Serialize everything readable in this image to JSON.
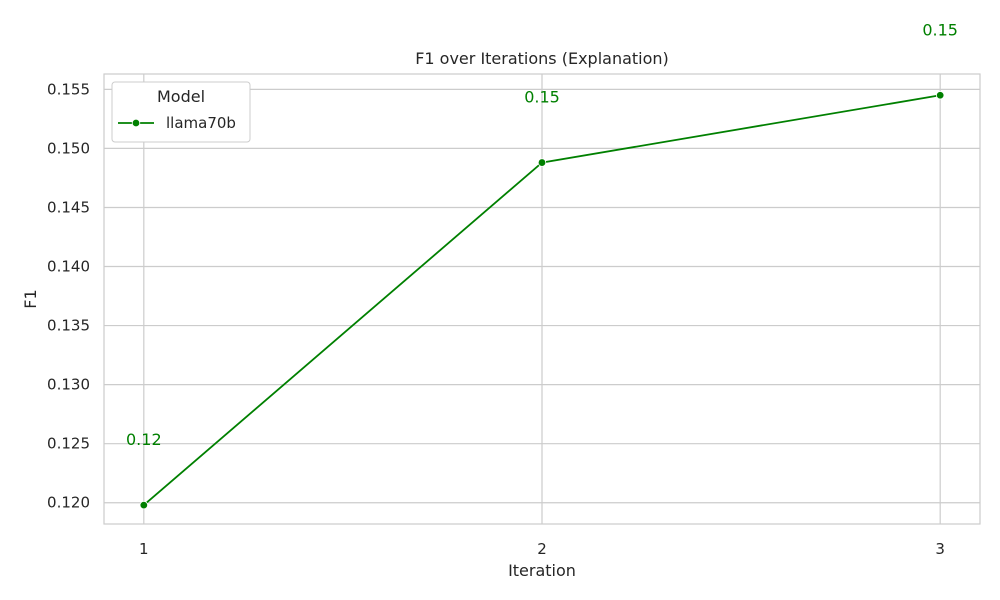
{
  "chart_data": {
    "type": "line",
    "title": "F1 over Iterations (Explanation)",
    "xlabel": "Iteration",
    "ylabel": "F1",
    "x": [
      1,
      2,
      3
    ],
    "xlim": [
      0.9,
      3.1
    ],
    "ylim": [
      0.1182,
      0.1563
    ],
    "yticks": [
      0.12,
      0.125,
      0.13,
      0.135,
      0.14,
      0.145,
      0.15,
      0.155
    ],
    "ytick_labels": [
      "0.120",
      "0.125",
      "0.130",
      "0.135",
      "0.140",
      "0.145",
      "0.150",
      "0.155"
    ],
    "xticks": [
      1,
      2,
      3
    ],
    "xtick_labels": [
      "1",
      "2",
      "3"
    ],
    "grid": true,
    "legend": {
      "title": "Model",
      "placement": "top-left"
    },
    "series": [
      {
        "name": "llama70b",
        "color": "#008000",
        "marker": "circle",
        "values": [
          0.1198,
          0.1488,
          0.1545
        ],
        "data_labels": [
          "0.12",
          "0.15",
          "0.15"
        ]
      }
    ]
  }
}
